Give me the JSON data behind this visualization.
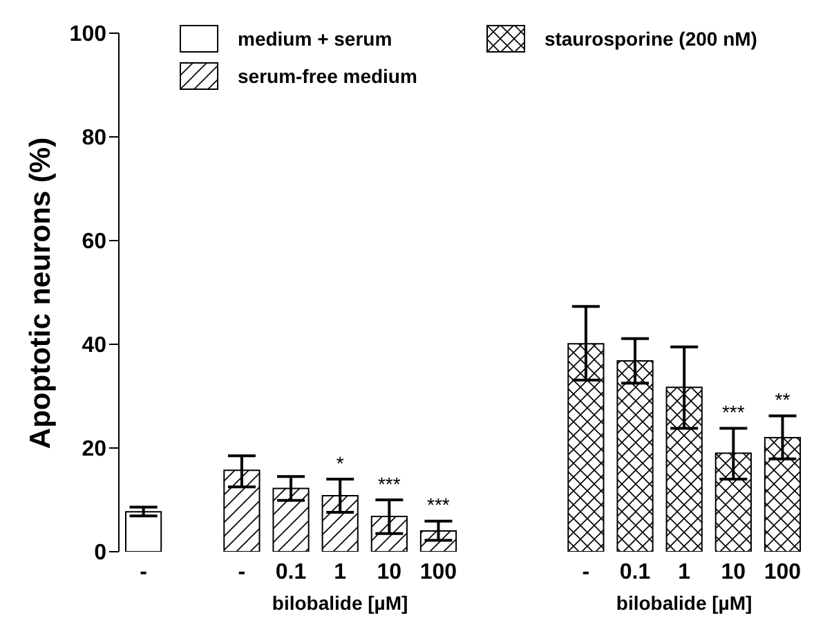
{
  "chart_data": {
    "type": "bar",
    "ylabel": "Apoptotic neurons (%)",
    "xlabel": "bilobalide [µM]",
    "categories": [
      "-",
      null,
      "-",
      "0.1",
      "1",
      "10",
      "100",
      null,
      null,
      "-",
      "0.1",
      "1",
      "10",
      "100"
    ],
    "series": [
      {
        "name": "medium + serum",
        "color": "#000000",
        "values": [
          7.7,
          null,
          null,
          null,
          null,
          null,
          null,
          null,
          null,
          null,
          null,
          null,
          null,
          null
        ],
        "errors": [
          [
            6.9,
            8.6
          ],
          null,
          null,
          null,
          null,
          null,
          null,
          null,
          null,
          null,
          null,
          null,
          null,
          null
        ]
      },
      {
        "name": "serum-free medium",
        "color": "#000000",
        "values": [
          null,
          null,
          15.7,
          12.2,
          10.8,
          6.8,
          4,
          null,
          null,
          null,
          null,
          null,
          null,
          null
        ],
        "value_labels": [
          null,
          null,
          null,
          null,
          "*",
          "***",
          "***",
          null,
          null,
          null,
          null,
          null,
          null,
          null
        ],
        "errors": [
          null,
          null,
          [
            12.5,
            18.5
          ],
          [
            9.9,
            14.5
          ],
          [
            7.6,
            14
          ],
          [
            3.5,
            10
          ],
          [
            2.2,
            5.9
          ],
          null,
          null,
          null,
          null,
          null,
          null,
          null
        ]
      },
      {
        "name": "staurosporine (200 nM)",
        "color": "#000000",
        "values": [
          null,
          null,
          null,
          null,
          null,
          null,
          null,
          null,
          null,
          40.1,
          36.8,
          31.7,
          19,
          22
        ],
        "value_labels": [
          null,
          null,
          null,
          null,
          null,
          null,
          null,
          null,
          null,
          null,
          null,
          null,
          "***",
          "**"
        ],
        "errors": [
          null,
          null,
          null,
          null,
          null,
          null,
          null,
          null,
          null,
          [
            33.1,
            47.3
          ],
          [
            32.5,
            41.1
          ],
          [
            23.8,
            39.5
          ],
          [
            14,
            23.8
          ],
          [
            17.9,
            26.2
          ]
        ]
      }
    ],
    "ylim": [
      0,
      100
    ],
    "yticks": [
      0,
      20,
      40,
      60,
      80,
      100
    ],
    "legend": "top",
    "annotations": [
      "bilobalide [µM]"
    ]
  }
}
